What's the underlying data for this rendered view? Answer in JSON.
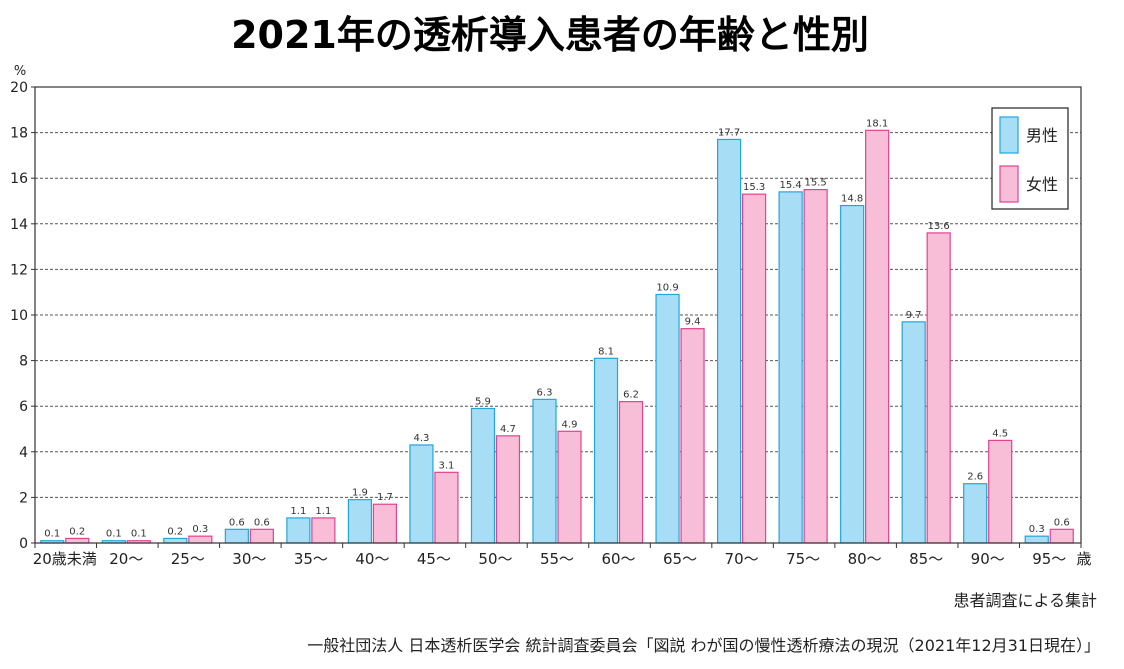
{
  "chart_data": {
    "type": "bar",
    "title": "2021年の透析導入患者の年齢と性別",
    "ylabel": "%",
    "xlabel": "歳",
    "categories": [
      "20歳未満",
      "20〜",
      "25〜",
      "30〜",
      "35〜",
      "40〜",
      "45〜",
      "50〜",
      "55〜",
      "60〜",
      "65〜",
      "70〜",
      "75〜",
      "80〜",
      "85〜",
      "90〜",
      "95〜"
    ],
    "series": [
      {
        "name": "男性",
        "color": "#a8def5",
        "stroke": "#1fa6df",
        "values": [
          0.1,
          0.1,
          0.2,
          0.6,
          1.1,
          1.9,
          4.3,
          5.9,
          6.3,
          8.1,
          10.9,
          17.7,
          15.4,
          14.8,
          9.7,
          2.6,
          0.3
        ]
      },
      {
        "name": "女性",
        "color": "#f8bed7",
        "stroke": "#e2428f",
        "values": [
          0.2,
          0.1,
          0.3,
          0.6,
          1.1,
          1.7,
          3.1,
          4.7,
          4.9,
          6.2,
          9.4,
          15.3,
          15.5,
          18.1,
          13.6,
          4.5,
          0.6
        ]
      }
    ],
    "ylim": [
      0,
      20
    ],
    "yticks": [
      0,
      2,
      4,
      6,
      8,
      10,
      12,
      14,
      16,
      18,
      20
    ],
    "grid": true,
    "legend": "top-right",
    "data_labels": true
  },
  "footer": {
    "note": "患者調査による集計",
    "source": "一般社団法人 日本透析医学会 統計調査委員会「図説 わが国の慢性透析療法の現況（2021年12月31日現在）」"
  }
}
